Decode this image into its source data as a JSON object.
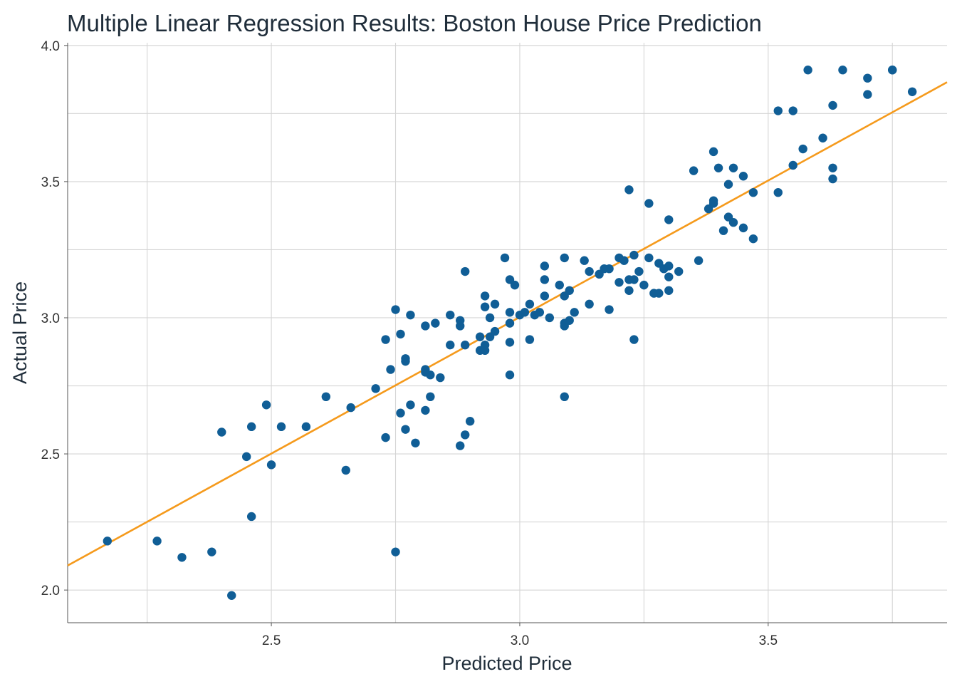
{
  "chart_data": {
    "type": "scatter",
    "title": "Multiple Linear Regression Results: Boston House Price Prediction",
    "xlabel": "Predicted Price",
    "ylabel": "Actual Price",
    "xlim": [
      2.09,
      3.86
    ],
    "ylim": [
      1.88,
      4.01
    ],
    "x_ticks": [
      2.5,
      3.0,
      3.5
    ],
    "y_ticks": [
      2.0,
      2.5,
      3.0,
      3.5,
      4.0
    ],
    "x_tick_labels": [
      "2.5",
      "3.0",
      "3.5"
    ],
    "y_tick_labels": [
      "2.0",
      "2.5",
      "3.0",
      "3.5",
      "4.0"
    ],
    "grid": true,
    "point_color": "#105e96",
    "line_color": "#f59a1c",
    "fit_line": {
      "x": [
        2.09,
        3.86
      ],
      "y": [
        2.09,
        3.865
      ]
    },
    "points": [
      [
        2.17,
        2.18
      ],
      [
        2.27,
        2.18
      ],
      [
        2.32,
        2.12
      ],
      [
        2.38,
        2.14
      ],
      [
        2.42,
        1.98
      ],
      [
        2.4,
        2.58
      ],
      [
        2.45,
        2.49
      ],
      [
        2.46,
        2.6
      ],
      [
        2.49,
        2.68
      ],
      [
        2.46,
        2.27
      ],
      [
        2.5,
        2.46
      ],
      [
        2.52,
        2.6
      ],
      [
        2.57,
        2.6
      ],
      [
        2.61,
        2.71
      ],
      [
        2.65,
        2.44
      ],
      [
        2.66,
        2.67
      ],
      [
        2.71,
        2.74
      ],
      [
        2.73,
        2.92
      ],
      [
        2.73,
        2.56
      ],
      [
        2.74,
        2.81
      ],
      [
        2.75,
        3.03
      ],
      [
        2.75,
        2.14
      ],
      [
        2.76,
        2.94
      ],
      [
        2.76,
        2.65
      ],
      [
        2.77,
        2.84
      ],
      [
        2.77,
        2.85
      ],
      [
        2.77,
        2.59
      ],
      [
        2.78,
        3.01
      ],
      [
        2.78,
        2.68
      ],
      [
        2.79,
        2.54
      ],
      [
        2.81,
        2.97
      ],
      [
        2.81,
        2.8
      ],
      [
        2.81,
        2.66
      ],
      [
        2.81,
        2.81
      ],
      [
        2.82,
        2.79
      ],
      [
        2.82,
        2.71
      ],
      [
        2.83,
        2.98
      ],
      [
        2.84,
        2.78
      ],
      [
        2.86,
        3.01
      ],
      [
        2.86,
        2.9
      ],
      [
        2.88,
        2.99
      ],
      [
        2.88,
        2.97
      ],
      [
        2.88,
        2.53
      ],
      [
        2.89,
        3.17
      ],
      [
        2.89,
        2.9
      ],
      [
        2.89,
        2.57
      ],
      [
        2.9,
        2.62
      ],
      [
        2.92,
        2.93
      ],
      [
        2.92,
        2.88
      ],
      [
        2.93,
        3.08
      ],
      [
        2.93,
        3.04
      ],
      [
        2.93,
        2.9
      ],
      [
        2.93,
        2.88
      ],
      [
        2.94,
        2.93
      ],
      [
        2.94,
        3.0
      ],
      [
        2.95,
        3.05
      ],
      [
        2.95,
        2.95
      ],
      [
        2.97,
        3.22
      ],
      [
        2.98,
        3.14
      ],
      [
        2.98,
        3.02
      ],
      [
        2.98,
        2.98
      ],
      [
        2.98,
        2.91
      ],
      [
        2.98,
        2.79
      ],
      [
        2.99,
        3.12
      ],
      [
        3.0,
        3.01
      ],
      [
        3.01,
        3.02
      ],
      [
        3.02,
        3.05
      ],
      [
        3.02,
        2.92
      ],
      [
        3.03,
        3.01
      ],
      [
        3.04,
        3.02
      ],
      [
        3.05,
        3.19
      ],
      [
        3.05,
        3.08
      ],
      [
        3.05,
        3.14
      ],
      [
        3.06,
        3.0
      ],
      [
        3.08,
        3.12
      ],
      [
        3.09,
        3.22
      ],
      [
        3.09,
        3.08
      ],
      [
        3.09,
        2.97
      ],
      [
        3.09,
        2.98
      ],
      [
        3.09,
        2.71
      ],
      [
        3.1,
        3.1
      ],
      [
        3.1,
        2.99
      ],
      [
        3.11,
        3.02
      ],
      [
        3.13,
        3.21
      ],
      [
        3.14,
        3.05
      ],
      [
        3.14,
        3.17
      ],
      [
        3.16,
        3.16
      ],
      [
        3.17,
        3.18
      ],
      [
        3.18,
        3.18
      ],
      [
        3.18,
        3.03
      ],
      [
        3.2,
        3.22
      ],
      [
        3.2,
        3.13
      ],
      [
        3.21,
        3.21
      ],
      [
        3.22,
        3.14
      ],
      [
        3.22,
        3.1
      ],
      [
        3.22,
        3.47
      ],
      [
        3.23,
        3.23
      ],
      [
        3.23,
        3.14
      ],
      [
        3.23,
        2.92
      ],
      [
        3.24,
        3.17
      ],
      [
        3.25,
        3.12
      ],
      [
        3.26,
        3.22
      ],
      [
        3.26,
        3.42
      ],
      [
        3.27,
        3.09
      ],
      [
        3.28,
        3.09
      ],
      [
        3.28,
        3.2
      ],
      [
        3.29,
        3.18
      ],
      [
        3.3,
        3.19
      ],
      [
        3.3,
        3.15
      ],
      [
        3.3,
        3.36
      ],
      [
        3.3,
        3.1
      ],
      [
        3.32,
        3.17
      ],
      [
        3.35,
        3.54
      ],
      [
        3.36,
        3.21
      ],
      [
        3.38,
        3.4
      ],
      [
        3.39,
        3.43
      ],
      [
        3.39,
        3.42
      ],
      [
        3.39,
        3.61
      ],
      [
        3.4,
        3.55
      ],
      [
        3.41,
        3.32
      ],
      [
        3.42,
        3.49
      ],
      [
        3.42,
        3.37
      ],
      [
        3.43,
        3.35
      ],
      [
        3.43,
        3.55
      ],
      [
        3.45,
        3.52
      ],
      [
        3.45,
        3.33
      ],
      [
        3.47,
        3.29
      ],
      [
        3.47,
        3.46
      ],
      [
        3.52,
        3.76
      ],
      [
        3.52,
        3.46
      ],
      [
        3.55,
        3.76
      ],
      [
        3.55,
        3.56
      ],
      [
        3.57,
        3.62
      ],
      [
        3.58,
        3.91
      ],
      [
        3.61,
        3.66
      ],
      [
        3.63,
        3.78
      ],
      [
        3.63,
        3.55
      ],
      [
        3.63,
        3.51
      ],
      [
        3.65,
        3.91
      ],
      [
        3.7,
        3.88
      ],
      [
        3.7,
        3.82
      ],
      [
        3.75,
        3.91
      ],
      [
        3.75,
        3.91
      ],
      [
        3.79,
        3.83
      ]
    ]
  }
}
